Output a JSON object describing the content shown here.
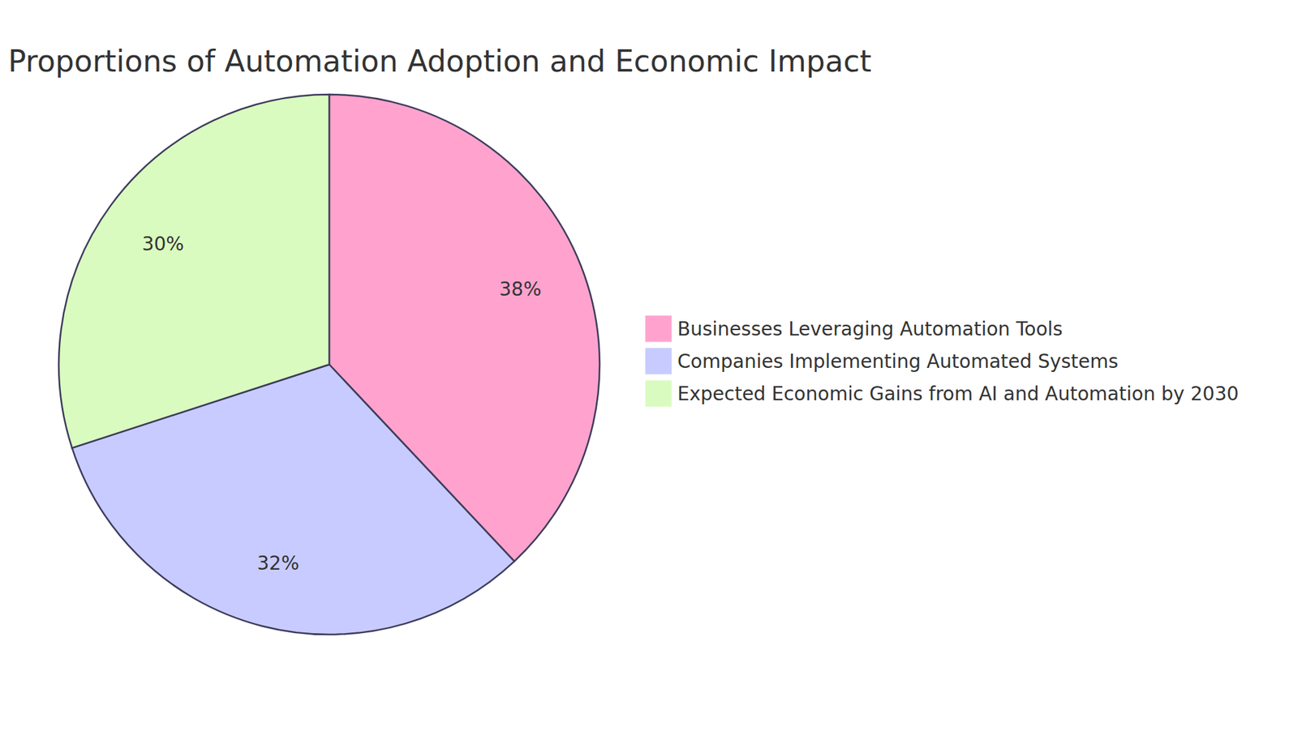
{
  "chart_data": {
    "type": "pie",
    "title": "Proportions of Automation Adoption and Economic Impact",
    "categories": [
      "Businesses Leveraging Automation Tools",
      "Companies Implementing Automated Systems",
      "Expected Economic Gains from AI and Automation by 2030"
    ],
    "values": [
      38,
      32,
      30
    ],
    "value_labels": [
      "38%",
      "32%",
      "30%"
    ],
    "colors": [
      "#ffa3ce",
      "#c8cbff",
      "#dafbbf"
    ],
    "data_labels": true,
    "legend": "right"
  }
}
